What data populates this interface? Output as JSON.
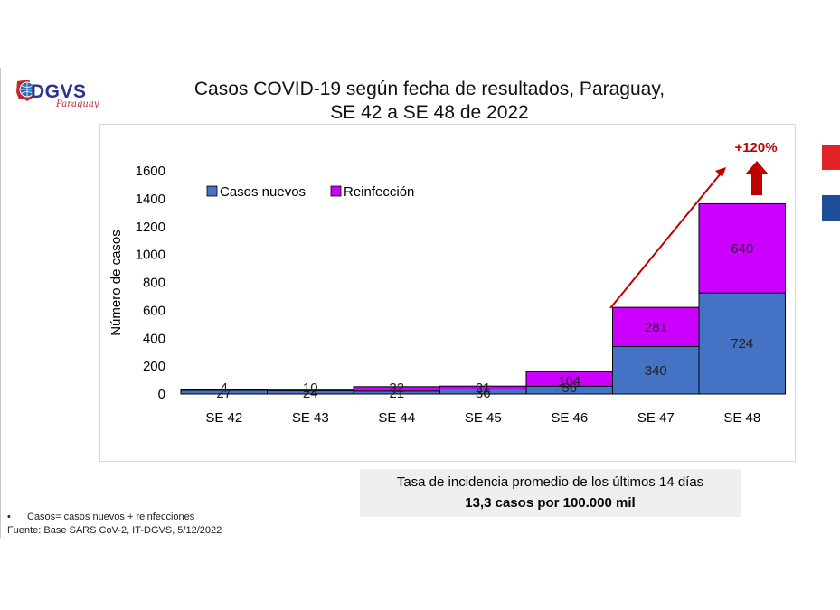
{
  "logo": {
    "name": "DGVS",
    "sub": "Paraguay"
  },
  "title_line1": "Casos COVID-19 según fecha de resultados, Paraguay,",
  "title_line2": "SE 42 a SE 48 de 2022",
  "chart_data": {
    "type": "bar",
    "stacked": true,
    "categories": [
      "SE 42",
      "SE 43",
      "SE 44",
      "SE 45",
      "SE 46",
      "SE 47",
      "SE 48"
    ],
    "series": [
      {
        "name": "Casos nuevos",
        "color": "#4472c4",
        "values": [
          27,
          24,
          21,
          36,
          56,
          340,
          724
        ]
      },
      {
        "name": "Reinfección",
        "color": "#cc00ff",
        "values": [
          4,
          10,
          32,
          21,
          104,
          281,
          640
        ]
      }
    ],
    "ylabel": "Número de casos",
    "xlabel": "",
    "ylim": [
      0,
      1600
    ],
    "yticks": [
      0,
      200,
      400,
      600,
      800,
      1000,
      1200,
      1400,
      1600
    ],
    "grid": false,
    "legend": "top-left",
    "annotation": {
      "text": "+120%",
      "color": "#c00000"
    }
  },
  "info": {
    "line1": "Tasa de incidencia promedio de los últimos 14 días",
    "line2": "13,3 casos por 100.000 mil"
  },
  "notes": {
    "bullet": "•",
    "line1": "Casos= casos nuevos + reinfecciones",
    "line2": "Fuente: Base SARS CoV-2, IT-DGVS, 5/12/2022"
  }
}
